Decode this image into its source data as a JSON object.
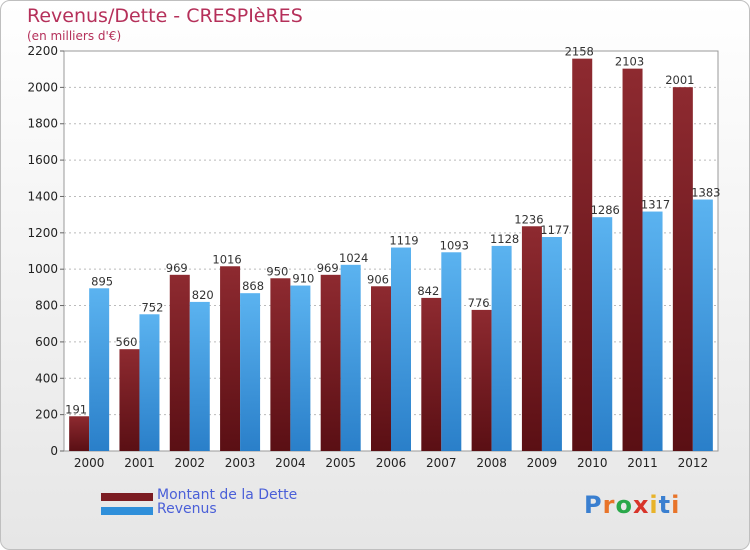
{
  "header": {
    "title": "Revenus/Dette - CRESPIèRES",
    "subtitle": "(en milliers d'€)"
  },
  "logo_text": "Proxiti",
  "colors": {
    "dette": "#7b1c22",
    "revenus": "#2f8fda"
  },
  "chart_data": {
    "type": "bar",
    "categories": [
      "2000",
      "2001",
      "2002",
      "2003",
      "2004",
      "2005",
      "2006",
      "2007",
      "2008",
      "2009",
      "2010",
      "2011",
      "2012"
    ],
    "series": [
      {
        "name": "Montant de la Dette",
        "values": [
          191,
          560,
          969,
          1016,
          950,
          969,
          906,
          842,
          776,
          1236,
          2158,
          2103,
          2001
        ]
      },
      {
        "name": "Revenus",
        "values": [
          895,
          752,
          820,
          868,
          910,
          1024,
          1119,
          1093,
          1128,
          1177,
          1286,
          1317,
          1383
        ]
      }
    ],
    "title": "Revenus/Dette - CRESPIèRES",
    "subtitle": "(en milliers d'€)",
    "ylim": [
      0,
      2200
    ],
    "yticks": [
      0,
      200,
      400,
      600,
      800,
      1000,
      1200,
      1400,
      1600,
      1800,
      2000,
      2200
    ],
    "grid": true,
    "legend": "bottom-left"
  }
}
